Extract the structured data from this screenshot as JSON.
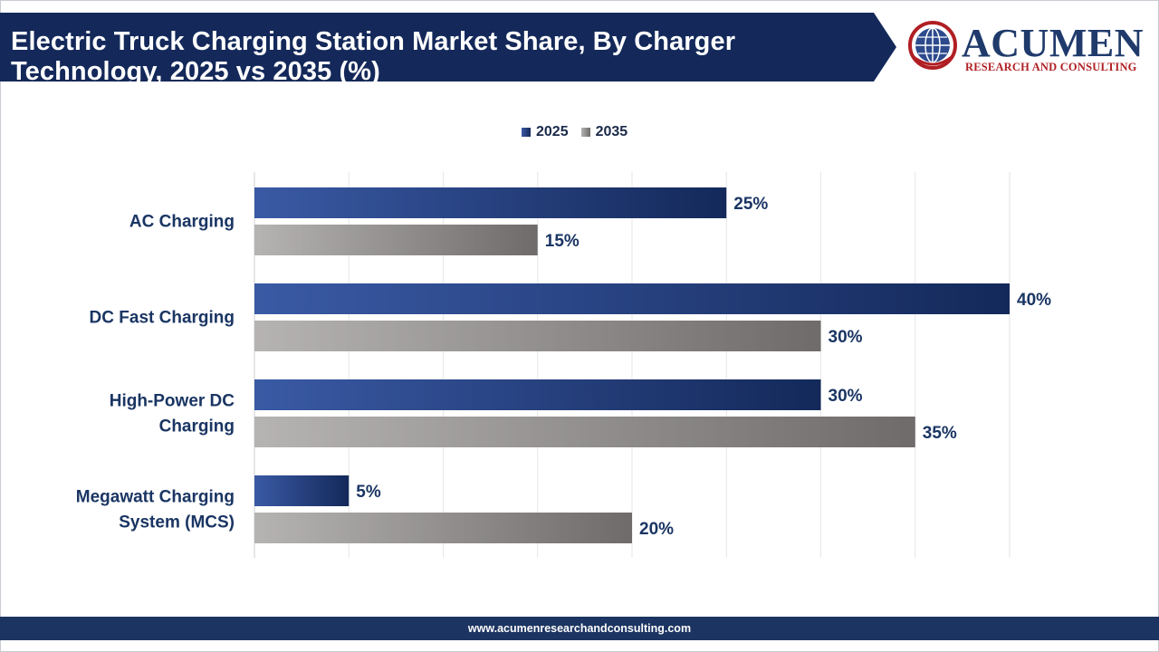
{
  "header": {
    "title_line1": "Electric Truck Charging Station Market Share, By Charger",
    "title_line2": "Technology, 2025 vs 2035 (%)"
  },
  "logo": {
    "name": "ACUMEN",
    "tagline": "RESEARCH AND CONSULTING",
    "icon": "globe-icon"
  },
  "footer": {
    "url": "www.acumenresearchandconsulting.com"
  },
  "colors": {
    "banner": "#14295a",
    "series_2025_start": "#3a5aa5",
    "series_2025_end": "#14295a",
    "series_2035_start": "#b6b3b3",
    "series_2035_end": "#6f6b6b",
    "label_text": "#1a3563",
    "footer": "#1c3461"
  },
  "chart_data": {
    "type": "bar",
    "orientation": "horizontal",
    "title": "Electric Truck Charging Station Market Share, By Charger Technology, 2025 vs 2035 (%)",
    "categories": [
      "AC Charging",
      "DC Fast Charging",
      "High-Power DC Charging",
      "Megawatt Charging System (MCS)"
    ],
    "category_lines": [
      [
        "AC Charging"
      ],
      [
        "DC Fast Charging"
      ],
      [
        "High-Power DC",
        "Charging"
      ],
      [
        "Megawatt Charging",
        "System (MCS)"
      ]
    ],
    "series": [
      {
        "name": "2025",
        "values": [
          25,
          40,
          30,
          5
        ],
        "labels": [
          "25%",
          "40%",
          "30%",
          "5%"
        ]
      },
      {
        "name": "2035",
        "values": [
          15,
          30,
          35,
          20
        ],
        "labels": [
          "15%",
          "30%",
          "35%",
          "20%"
        ]
      }
    ],
    "xlim": [
      0,
      40
    ],
    "grid": true,
    "legend": "top-center"
  }
}
